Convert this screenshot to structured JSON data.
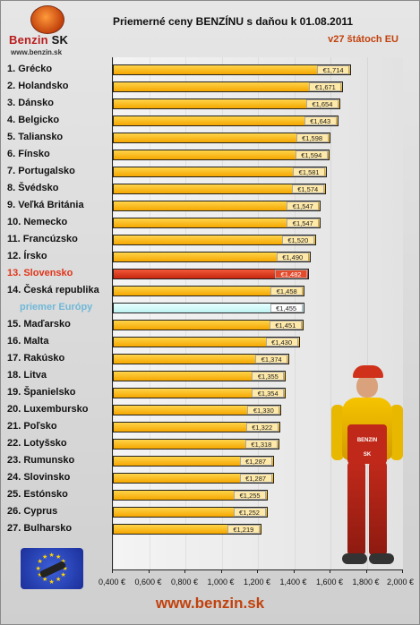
{
  "header": {
    "brand_name": "Benzin",
    "brand_suffix": "SK",
    "brand_url": "www.benzin.sk",
    "title": "Priemerné ceny BENZÍNU s daňou k 01.08.2011",
    "subtitle": "v27 štátoch EU"
  },
  "footer": {
    "url": "www.benzin.sk"
  },
  "mascot": {
    "badge": "BENZIN SK"
  },
  "colors": {
    "bar": "#f5a700",
    "highlight": "#c8260f",
    "average": "#bff2f2",
    "brand": "#c2410c"
  },
  "icons": {
    "logo": "fuel-nozzle-logo-icon",
    "flag": "eu-flag-icon",
    "mascot": "fuel-attendant-mascot"
  },
  "chart_data": {
    "type": "bar",
    "orientation": "horizontal",
    "title": "Priemerné ceny BENZÍNU s daňou k 01.08.2011",
    "subtitle": "v27 štátoch EU",
    "xlim": [
      0.4,
      2.0
    ],
    "grid": false,
    "legend": "none",
    "categories": [
      "1. Grécko",
      "2. Holandsko",
      "3. Dánsko",
      "4. Belgicko",
      "5. Taliansko",
      "6. Fínsko",
      "7. Portugalsko",
      "8. Švédsko",
      "9. Veľká Británia",
      "10. Nemecko",
      "11. Francúzsko",
      "12. Írsko",
      "13. Slovensko",
      "14. Česká republika",
      "priemer Európy",
      "15. Maďarsko",
      "16. Malta",
      "17. Rakúsko",
      "18. Litva",
      "19. Španielsko",
      "20. Luxembursko",
      "21. Poľsko",
      "22. Lotyšsko",
      "23. Rumunsko",
      "24. Slovinsko",
      "25. Estónsko",
      "26. Cyprus",
      "27. Bulharsko"
    ],
    "values": [
      1.714,
      1.671,
      1.654,
      1.643,
      1.598,
      1.594,
      1.581,
      1.574,
      1.547,
      1.547,
      1.52,
      1.49,
      1.482,
      1.458,
      1.455,
      1.451,
      1.43,
      1.374,
      1.355,
      1.354,
      1.33,
      1.322,
      1.318,
      1.287,
      1.287,
      1.255,
      1.252,
      1.219
    ],
    "data_labels": [
      "€1,714",
      "€1,671",
      "€1,654",
      "€1,643",
      "€1,598",
      "€1,594",
      "€1,581",
      "€1,574",
      "€1,547",
      "€1,547",
      "€1,520",
      "€1,490",
      "€1,482",
      "€1,458",
      "€1,455",
      "€1,451",
      "€1,430",
      "€1,374",
      "€1,355",
      "€1,354",
      "€1,330",
      "€1,322",
      "€1,318",
      "€1,287",
      "€1,287",
      "€1,255",
      "€1,252",
      "€1,219"
    ],
    "highlight_index": 12,
    "average_index": 14,
    "x_ticks": [
      0.4,
      0.6,
      0.8,
      1.0,
      1.2,
      1.4,
      1.6,
      1.8,
      2.0
    ],
    "x_tick_labels": [
      "0,400 €",
      "0,600 €",
      "0,800 €",
      "1,000 €",
      "1,200 €",
      "1,400 €",
      "1,600 €",
      "1,800 €",
      "2,000 €"
    ]
  }
}
